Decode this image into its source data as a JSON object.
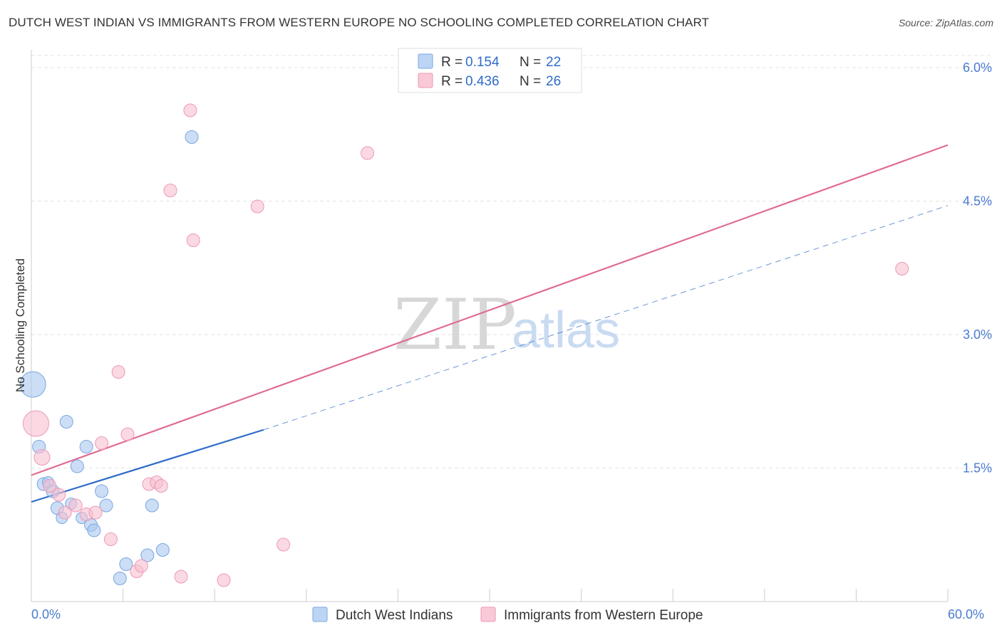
{
  "title": "DUTCH WEST INDIAN VS IMMIGRANTS FROM WESTERN EUROPE NO SCHOOLING COMPLETED CORRELATION CHART",
  "source": "Source: ZipAtlas.com",
  "watermark": {
    "zip": "ZIP",
    "atlas": "atlas"
  },
  "legend": {
    "r_label": "R =",
    "n_label": "N =",
    "entries": [
      {
        "r": "0.154",
        "n": "22"
      },
      {
        "r": "0.436",
        "n": "26"
      }
    ]
  },
  "chart_data": {
    "type": "scatter",
    "title": "DUTCH WEST INDIAN VS IMMIGRANTS FROM WESTERN EUROPE NO SCHOOLING COMPLETED CORRELATION CHART",
    "xlabel": "",
    "ylabel": "No Schooling Completed",
    "xlim": [
      0,
      60
    ],
    "ylim": [
      0,
      6.2
    ],
    "x_tick_labels": {
      "min": "0.0%",
      "max": "60.0%"
    },
    "y_ticks": [
      1.5,
      3.0,
      4.5,
      6.0
    ],
    "y_tick_labels": [
      "1.5%",
      "3.0%",
      "4.5%",
      "6.0%"
    ],
    "grid": true,
    "legend_position": "top-center",
    "series": [
      {
        "name": "Dutch West Indians",
        "color": "#a9c8f0",
        "edge": "#7aa6e0",
        "trend_color": "#2f6bc9",
        "trend": {
          "x0": 0,
          "y0": 1.12,
          "x1": 15.2,
          "y1": 1.93,
          "dashed_to_x": 60,
          "dashed_to_y": 4.45
        },
        "points": [
          [
            0.1,
            2.44,
            18
          ],
          [
            0.5,
            1.74,
            9
          ],
          [
            0.8,
            1.32,
            9
          ],
          [
            1.1,
            1.34,
            8
          ],
          [
            1.4,
            1.24,
            9
          ],
          [
            1.7,
            1.05,
            9
          ],
          [
            2.0,
            0.94,
            8
          ],
          [
            2.3,
            2.02,
            9
          ],
          [
            2.6,
            1.1,
            8
          ],
          [
            3.0,
            1.52,
            9
          ],
          [
            3.3,
            0.94,
            8
          ],
          [
            3.6,
            1.74,
            9
          ],
          [
            3.9,
            0.86,
            9
          ],
          [
            4.1,
            0.8,
            9
          ],
          [
            4.6,
            1.24,
            9
          ],
          [
            4.9,
            1.08,
            9
          ],
          [
            5.8,
            0.26,
            9
          ],
          [
            6.2,
            0.42,
            9
          ],
          [
            7.6,
            0.52,
            9
          ],
          [
            7.9,
            1.08,
            9
          ],
          [
            8.6,
            0.58,
            9
          ],
          [
            10.5,
            5.22,
            9
          ]
        ]
      },
      {
        "name": "Immigrants from Western Europe",
        "color": "#f7bfd0",
        "edge": "#ee98b3",
        "trend_color": "#e06b93",
        "trend": {
          "x0": 0,
          "y0": 1.42,
          "x1": 60,
          "y1": 5.13
        },
        "points": [
          [
            0.3,
            2.0,
            18
          ],
          [
            0.7,
            1.62,
            11
          ],
          [
            1.2,
            1.3,
            9
          ],
          [
            1.8,
            1.2,
            9
          ],
          [
            2.2,
            1.0,
            9
          ],
          [
            2.9,
            1.08,
            9
          ],
          [
            3.6,
            0.98,
            9
          ],
          [
            4.2,
            1.0,
            9
          ],
          [
            4.6,
            1.78,
            9
          ],
          [
            5.2,
            0.7,
            9
          ],
          [
            5.7,
            2.58,
            9
          ],
          [
            6.3,
            1.88,
            9
          ],
          [
            6.9,
            0.34,
            9
          ],
          [
            7.2,
            0.4,
            9
          ],
          [
            7.7,
            1.32,
            9
          ],
          [
            8.2,
            1.34,
            9
          ],
          [
            8.5,
            1.3,
            9
          ],
          [
            9.1,
            4.62,
            9
          ],
          [
            9.8,
            0.28,
            9
          ],
          [
            10.4,
            5.52,
            9
          ],
          [
            10.6,
            4.06,
            9
          ],
          [
            12.6,
            0.24,
            9
          ],
          [
            14.8,
            4.44,
            9
          ],
          [
            16.5,
            0.64,
            9
          ],
          [
            22.0,
            5.04,
            9
          ],
          [
            57.0,
            3.74,
            9
          ]
        ]
      }
    ]
  }
}
